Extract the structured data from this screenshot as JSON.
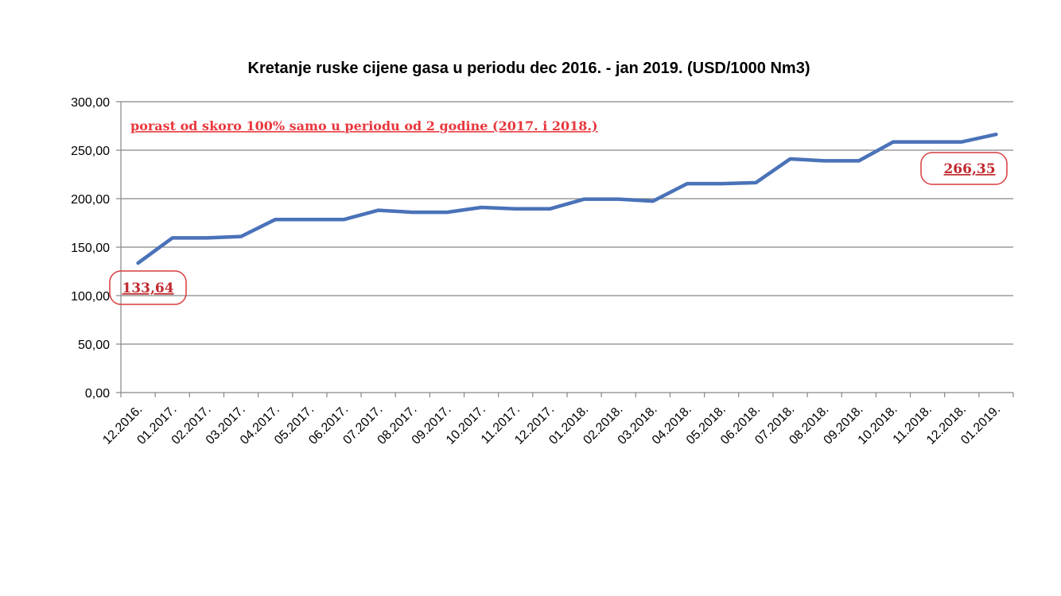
{
  "chart_data": {
    "type": "line",
    "title": "Kretanje ruske cijene gasa u periodu dec 2016. - jan 2019. (USD/1000 Nm3)",
    "xlabel": "",
    "ylabel": "",
    "ylim": [
      0,
      300
    ],
    "y_ticks": [
      "0,00",
      "50,00",
      "100,00",
      "150,00",
      "200,00",
      "250,00",
      "300,00"
    ],
    "grid": true,
    "legend": "none",
    "categories": [
      "12.2016.",
      "01.2017.",
      "02.2017.",
      "03.2017.",
      "04.2017.",
      "05.2017.",
      "06.2017.",
      "07.2017.",
      "08.2017.",
      "09.2017.",
      "10.2017.",
      "11.2017.",
      "12.2017.",
      "01.2018.",
      "02.2018.",
      "03.2018.",
      "04.2018.",
      "05.2018.",
      "06.2018.",
      "07.2018.",
      "08.2018.",
      "09.2018.",
      "10.2018.",
      "11.2018.",
      "12.2018.",
      "01.2019."
    ],
    "series": [
      {
        "color": "#4a72b8",
        "values": [
          133.64,
          159.5,
          159.5,
          161,
          178.5,
          178.5,
          178.5,
          188,
          186,
          186,
          191,
          189.5,
          189.5,
          199.5,
          199.5,
          197.5,
          215.5,
          215.5,
          216.5,
          241,
          239,
          239,
          258.5,
          258.5,
          258.5,
          266.35
        ]
      }
    ],
    "annotations": {
      "note": "porast od skoro 100% samo u periodu od 2 godine (2017. i 2018.)",
      "start_value": "133,64",
      "end_value": "266,35"
    },
    "colors": {
      "axis": "#868686",
      "grid": "#868686",
      "annotation": "#e8383d"
    }
  }
}
